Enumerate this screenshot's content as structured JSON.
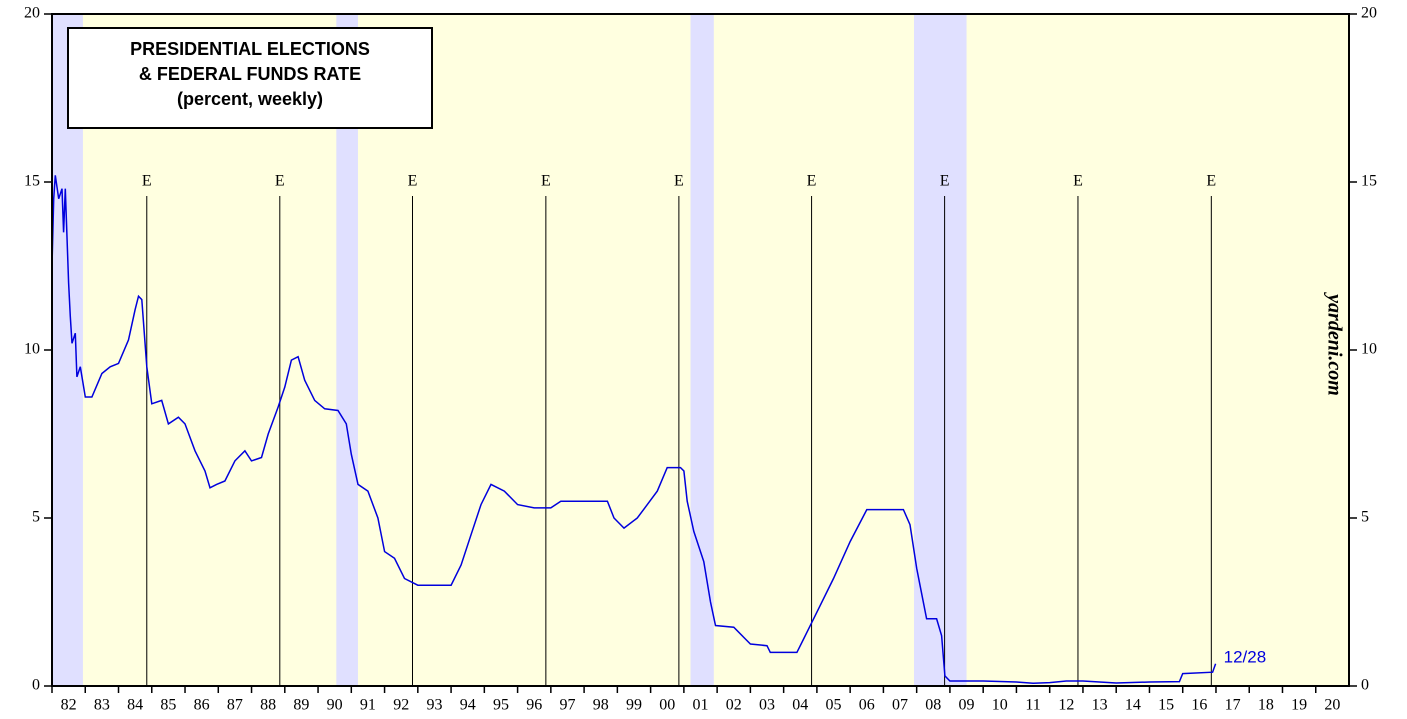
{
  "chart_data": {
    "type": "line",
    "title_lines": [
      "PRESIDENTIAL ELECTIONS",
      "& FEDERAL FUNDS RATE",
      "(percent, weekly)"
    ],
    "source": "yardeni.com",
    "end_label": "12/28",
    "xlim": [
      1982,
      2021
    ],
    "xticks": [
      {
        "value": 1982,
        "label": "82"
      },
      {
        "value": 1983,
        "label": "83"
      },
      {
        "value": 1984,
        "label": "84"
      },
      {
        "value": 1985,
        "label": "85"
      },
      {
        "value": 1986,
        "label": "86"
      },
      {
        "value": 1987,
        "label": "87"
      },
      {
        "value": 1988,
        "label": "88"
      },
      {
        "value": 1989,
        "label": "89"
      },
      {
        "value": 1990,
        "label": "90"
      },
      {
        "value": 1991,
        "label": "91"
      },
      {
        "value": 1992,
        "label": "92"
      },
      {
        "value": 1993,
        "label": "93"
      },
      {
        "value": 1994,
        "label": "94"
      },
      {
        "value": 1995,
        "label": "95"
      },
      {
        "value": 1996,
        "label": "96"
      },
      {
        "value": 1997,
        "label": "97"
      },
      {
        "value": 1998,
        "label": "98"
      },
      {
        "value": 1999,
        "label": "99"
      },
      {
        "value": 2000,
        "label": "00"
      },
      {
        "value": 2001,
        "label": "01"
      },
      {
        "value": 2002,
        "label": "02"
      },
      {
        "value": 2003,
        "label": "03"
      },
      {
        "value": 2004,
        "label": "04"
      },
      {
        "value": 2005,
        "label": "05"
      },
      {
        "value": 2006,
        "label": "06"
      },
      {
        "value": 2007,
        "label": "07"
      },
      {
        "value": 2008,
        "label": "08"
      },
      {
        "value": 2009,
        "label": "09"
      },
      {
        "value": 2010,
        "label": "10"
      },
      {
        "value": 2011,
        "label": "11"
      },
      {
        "value": 2012,
        "label": "12"
      },
      {
        "value": 2013,
        "label": "13"
      },
      {
        "value": 2014,
        "label": "14"
      },
      {
        "value": 2015,
        "label": "15"
      },
      {
        "value": 2016,
        "label": "16"
      },
      {
        "value": 2017,
        "label": "17"
      },
      {
        "value": 2018,
        "label": "18"
      },
      {
        "value": 2019,
        "label": "19"
      },
      {
        "value": 2020,
        "label": "20"
      }
    ],
    "ylim": [
      0,
      20
    ],
    "yticks": [
      0,
      5,
      10,
      15,
      20
    ],
    "background_color": "#ffffe0",
    "recession_color": "#e0e0ff",
    "recessions": [
      [
        1982.0,
        1982.93
      ],
      [
        1990.55,
        1991.2
      ],
      [
        2001.2,
        2001.9
      ],
      [
        2007.92,
        2009.5
      ]
    ],
    "elections": {
      "label": "E",
      "x": [
        1984.85,
        1988.85,
        1992.84,
        1996.85,
        2000.85,
        2004.84,
        2008.84,
        2012.85,
        2016.86
      ]
    },
    "series": [
      {
        "name": "Federal Funds Rate",
        "color": "#0000dd",
        "x": [
          1982.0,
          1982.05,
          1982.1,
          1982.2,
          1982.3,
          1982.35,
          1982.4,
          1982.5,
          1982.55,
          1982.6,
          1982.7,
          1982.75,
          1982.85,
          1983.0,
          1983.2,
          1983.5,
          1983.75,
          1984.0,
          1984.3,
          1984.5,
          1984.6,
          1984.7,
          1984.85,
          1985.0,
          1985.3,
          1985.5,
          1985.8,
          1986.0,
          1986.3,
          1986.6,
          1986.75,
          1986.95,
          1987.2,
          1987.5,
          1987.8,
          1988.0,
          1988.3,
          1988.5,
          1988.8,
          1989.0,
          1989.2,
          1989.4,
          1989.6,
          1989.9,
          1990.2,
          1990.6,
          1990.85,
          1991.0,
          1991.2,
          1991.5,
          1991.8,
          1992.0,
          1992.3,
          1992.6,
          1993.0,
          1993.5,
          1994.0,
          1994.3,
          1994.6,
          1994.9,
          1995.2,
          1995.6,
          1996.0,
          1996.5,
          1997.0,
          1997.3,
          1998.0,
          1998.7,
          1998.9,
          1999.2,
          1999.6,
          1999.9,
          2000.2,
          2000.5,
          2000.9,
          2001.0,
          2001.1,
          2001.3,
          2001.6,
          2001.8,
          2001.95,
          2002.5,
          2002.85,
          2003.0,
          2003.5,
          2003.6,
          2004.4,
          2004.6,
          2004.9,
          2005.5,
          2006.0,
          2006.5,
          2007.6,
          2007.8,
          2008.0,
          2008.1,
          2008.3,
          2008.6,
          2008.75,
          2008.85,
          2009.0,
          2010.0,
          2011.0,
          2011.5,
          2012.0,
          2012.5,
          2013.0,
          2014.0,
          2015.0,
          2015.9,
          2016.0,
          2016.9,
          2016.99
        ],
        "values": [
          12.5,
          14.5,
          15.2,
          14.5,
          14.8,
          13.5,
          14.8,
          12.0,
          11.0,
          10.2,
          10.5,
          9.2,
          9.5,
          8.6,
          8.6,
          9.3,
          9.5,
          9.6,
          10.3,
          11.2,
          11.6,
          11.5,
          9.5,
          8.4,
          8.5,
          7.8,
          8.0,
          7.8,
          7.0,
          6.4,
          5.9,
          6.0,
          6.1,
          6.7,
          7.0,
          6.7,
          6.8,
          7.5,
          8.3,
          8.9,
          9.7,
          9.8,
          9.1,
          8.5,
          8.25,
          8.2,
          7.8,
          6.9,
          6.0,
          5.8,
          5.0,
          4.0,
          3.8,
          3.2,
          3.0,
          3.0,
          3.0,
          3.6,
          4.5,
          5.4,
          6.0,
          5.8,
          5.4,
          5.3,
          5.3,
          5.5,
          5.5,
          5.5,
          5.0,
          4.7,
          5.0,
          5.4,
          5.8,
          6.5,
          6.5,
          6.4,
          5.5,
          4.6,
          3.7,
          2.5,
          1.8,
          1.75,
          1.4,
          1.25,
          1.2,
          1.0,
          1.0,
          1.4,
          2.0,
          3.2,
          4.3,
          5.25,
          5.25,
          4.8,
          3.5,
          3.0,
          2.0,
          2.0,
          1.5,
          0.3,
          0.15,
          0.15,
          0.12,
          0.08,
          0.1,
          0.15,
          0.15,
          0.09,
          0.12,
          0.13,
          0.37,
          0.41,
          0.66
        ]
      }
    ]
  }
}
